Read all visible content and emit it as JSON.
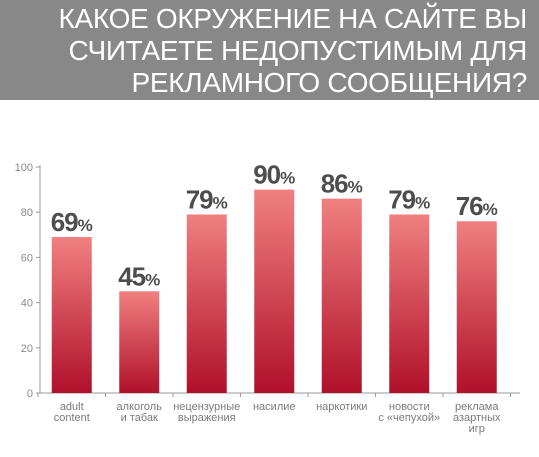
{
  "header": {
    "title": "КАКОЕ ОКРУЖЕНИЕ НА САЙТЕ ВЫ\nСЧИТАЕТЕ НЕДОПУСТИМЫМ ДЛЯ\nРЕКЛАМНОГО СООБЩЕНИЯ?"
  },
  "colors": {
    "banner": "#888888",
    "bar_top": "#f08080",
    "bar_bottom": "#b0102a"
  },
  "chart_data": {
    "type": "bar",
    "categories": [
      [
        "adult",
        "content"
      ],
      [
        "алкоголь",
        "и табак"
      ],
      [
        "нецензурные",
        "выражения"
      ],
      [
        "насилие"
      ],
      [
        "наркотики"
      ],
      [
        "новости",
        "с «чепухой»"
      ],
      [
        "реклама",
        "азартных",
        "игр"
      ]
    ],
    "values": [
      69,
      45,
      79,
      90,
      86,
      79,
      76
    ],
    "value_suffix": "%",
    "ylim": [
      0,
      100
    ],
    "yticks": [
      0,
      20,
      40,
      60,
      80,
      100
    ],
    "grid": false,
    "legend": "none"
  }
}
